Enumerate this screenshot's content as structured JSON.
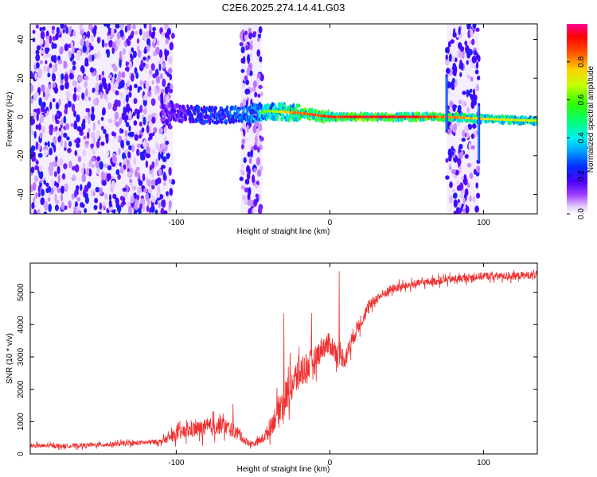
{
  "title": "C2E6.2025.274.14.41.G03",
  "colors": {
    "snr_line": "#f03030",
    "colormap": [
      "#ffffff",
      "#d9b8ff",
      "#8a00ff",
      "#3a00ff",
      "#0058ff",
      "#00d2ff",
      "#00ff88",
      "#5cff00",
      "#ffe000",
      "#ff6000",
      "#ff0000",
      "#ff00aa"
    ]
  },
  "chart_data": [
    {
      "type": "heatmap",
      "title": "C2E6.2025.274.14.41.G03",
      "xlabel": "Height of straight line (km)",
      "ylabel": "Frequency (Hz)",
      "xlim": [
        -195,
        135
      ],
      "ylim": [
        -50,
        48
      ],
      "xticks": [
        -100,
        0,
        100
      ],
      "xtick_labels": [
        "-100",
        "0",
        "100"
      ],
      "yticks": [
        -40,
        -20,
        0,
        20,
        40
      ],
      "ytick_labels": [
        "-40",
        "-20",
        "0",
        "20",
        "40"
      ],
      "colorbar": {
        "label": "Normalized spectral amplitude",
        "range": [
          0.0,
          1.0
        ],
        "ticks": [
          0.0,
          0.2,
          0.4,
          0.6,
          0.8
        ],
        "tick_labels": [
          "0.0",
          "0.2",
          "0.4",
          "0.6",
          "0.8"
        ]
      },
      "regions": [
        {
          "name": "noise",
          "x_range": [
            -195,
            -102
          ],
          "freq_spread": 48,
          "amplitude": 0.15
        },
        {
          "name": "noise",
          "x_range": [
            -58,
            -44
          ],
          "freq_spread": 48,
          "amplitude": 0.1
        },
        {
          "name": "noise",
          "x_range": [
            76,
            97
          ],
          "freq_spread": 48,
          "amplitude": 0.2
        }
      ],
      "ridge": {
        "name": "main spectral line",
        "x": [
          -100,
          -80,
          -60,
          -40,
          -20,
          0,
          20,
          40,
          60,
          75,
          100,
          135
        ],
        "center_hz": [
          2,
          1,
          1,
          3,
          2,
          0,
          0,
          0,
          0,
          0,
          -1,
          -2
        ],
        "amplitude": [
          0.25,
          0.4,
          0.45,
          0.65,
          0.85,
          0.9,
          0.95,
          0.95,
          0.9,
          0.85,
          0.75,
          0.7
        ]
      },
      "vertical_spikes": [
        {
          "x": 76,
          "freq_range": [
            -8,
            22
          ]
        },
        {
          "x": 97,
          "freq_range": [
            -24,
            7
          ]
        }
      ]
    },
    {
      "type": "line",
      "xlabel": "Height of straight line (km)",
      "ylabel": "SNR (10 * v/v)",
      "xlim": [
        -195,
        135
      ],
      "ylim": [
        0,
        5900
      ],
      "xticks": [
        -100,
        0,
        100
      ],
      "xtick_labels": [
        "-100",
        "0",
        "100"
      ],
      "yticks": [
        0,
        1000,
        2000,
        3000,
        4000,
        5000
      ],
      "ytick_labels": [
        "0",
        "1000",
        "2000",
        "3000",
        "4000",
        "5000"
      ],
      "series": [
        {
          "name": "SNR",
          "x": [
            -195,
            -170,
            -140,
            -110,
            -100,
            -90,
            -80,
            -70,
            -60,
            -55,
            -50,
            -45,
            -40,
            -35,
            -30,
            -25,
            -20,
            -15,
            -10,
            -5,
            0,
            5,
            10,
            15,
            20,
            25,
            30,
            40,
            50,
            60,
            80,
            100,
            120,
            135
          ],
          "values": [
            250,
            250,
            300,
            380,
            600,
            750,
            800,
            900,
            650,
            400,
            300,
            420,
            700,
            1200,
            1700,
            2100,
            2500,
            2700,
            2900,
            3300,
            3400,
            3100,
            2950,
            3600,
            4100,
            4500,
            4800,
            5100,
            5200,
            5300,
            5400,
            5500,
            5500,
            5550
          ],
          "noise_amplitude": [
            80,
            80,
            90,
            100,
            250,
            300,
            350,
            350,
            250,
            150,
            120,
            150,
            300,
            500,
            600,
            700,
            700,
            600,
            500,
            450,
            450,
            400,
            400,
            350,
            300,
            250,
            200,
            180,
            150,
            150,
            150,
            150,
            150,
            150
          ],
          "spikes": [
            {
              "x": 6,
              "value": 5650
            },
            {
              "x": -30,
              "value": 4350
            },
            {
              "x": -12,
              "value": 4350
            },
            {
              "x": -63,
              "value": 1550
            }
          ]
        }
      ]
    }
  ]
}
